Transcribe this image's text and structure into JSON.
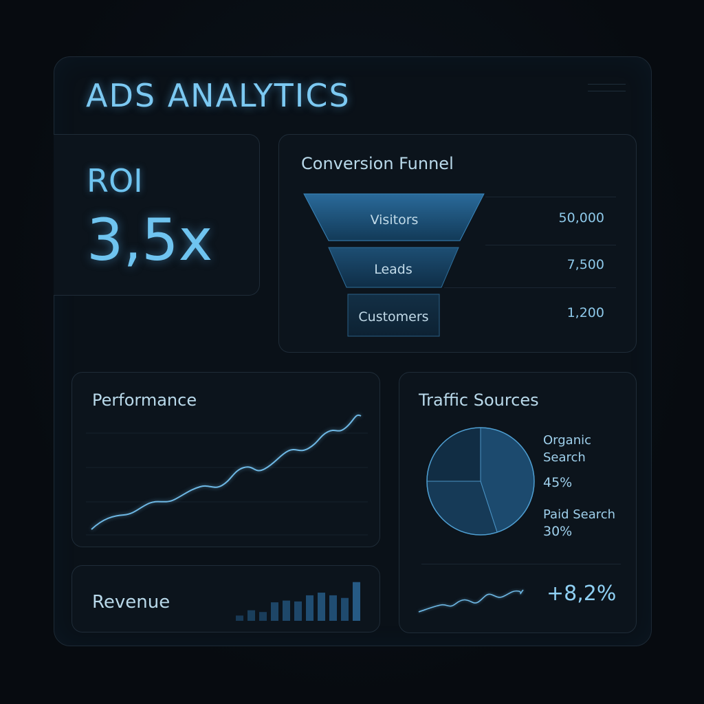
{
  "header": {
    "title": "ADS ANALYTICS"
  },
  "roi": {
    "label": "ROI",
    "value": "3,5x"
  },
  "funnel": {
    "title": "Conversion Funnel",
    "stages": [
      {
        "label": "Visitors",
        "value": "50,000"
      },
      {
        "label": "Leads",
        "value": "7,500"
      },
      {
        "label": "Customers",
        "value": "1,200"
      }
    ]
  },
  "performance": {
    "title": "Performance"
  },
  "revenue": {
    "title": "Revenue",
    "bars": [
      0.12,
      0.24,
      0.2,
      0.42,
      0.46,
      0.44,
      0.58,
      0.64,
      0.58,
      0.52,
      0.88
    ]
  },
  "traffic": {
    "title": "Traffic Sources",
    "slices": [
      {
        "name_line1": "Organic",
        "name_line2": "Search",
        "percent": "45%",
        "share": 45
      },
      {
        "name_line1": "Paid Search",
        "name_line2": "",
        "percent": "30%",
        "share": 30
      },
      {
        "share": 25
      }
    ],
    "delta": "+8,2%"
  },
  "colors": {
    "accent": "#6fc4f0",
    "panel": "#0c141c",
    "border": "#1f2c38",
    "line": "#6fb9e6"
  }
}
